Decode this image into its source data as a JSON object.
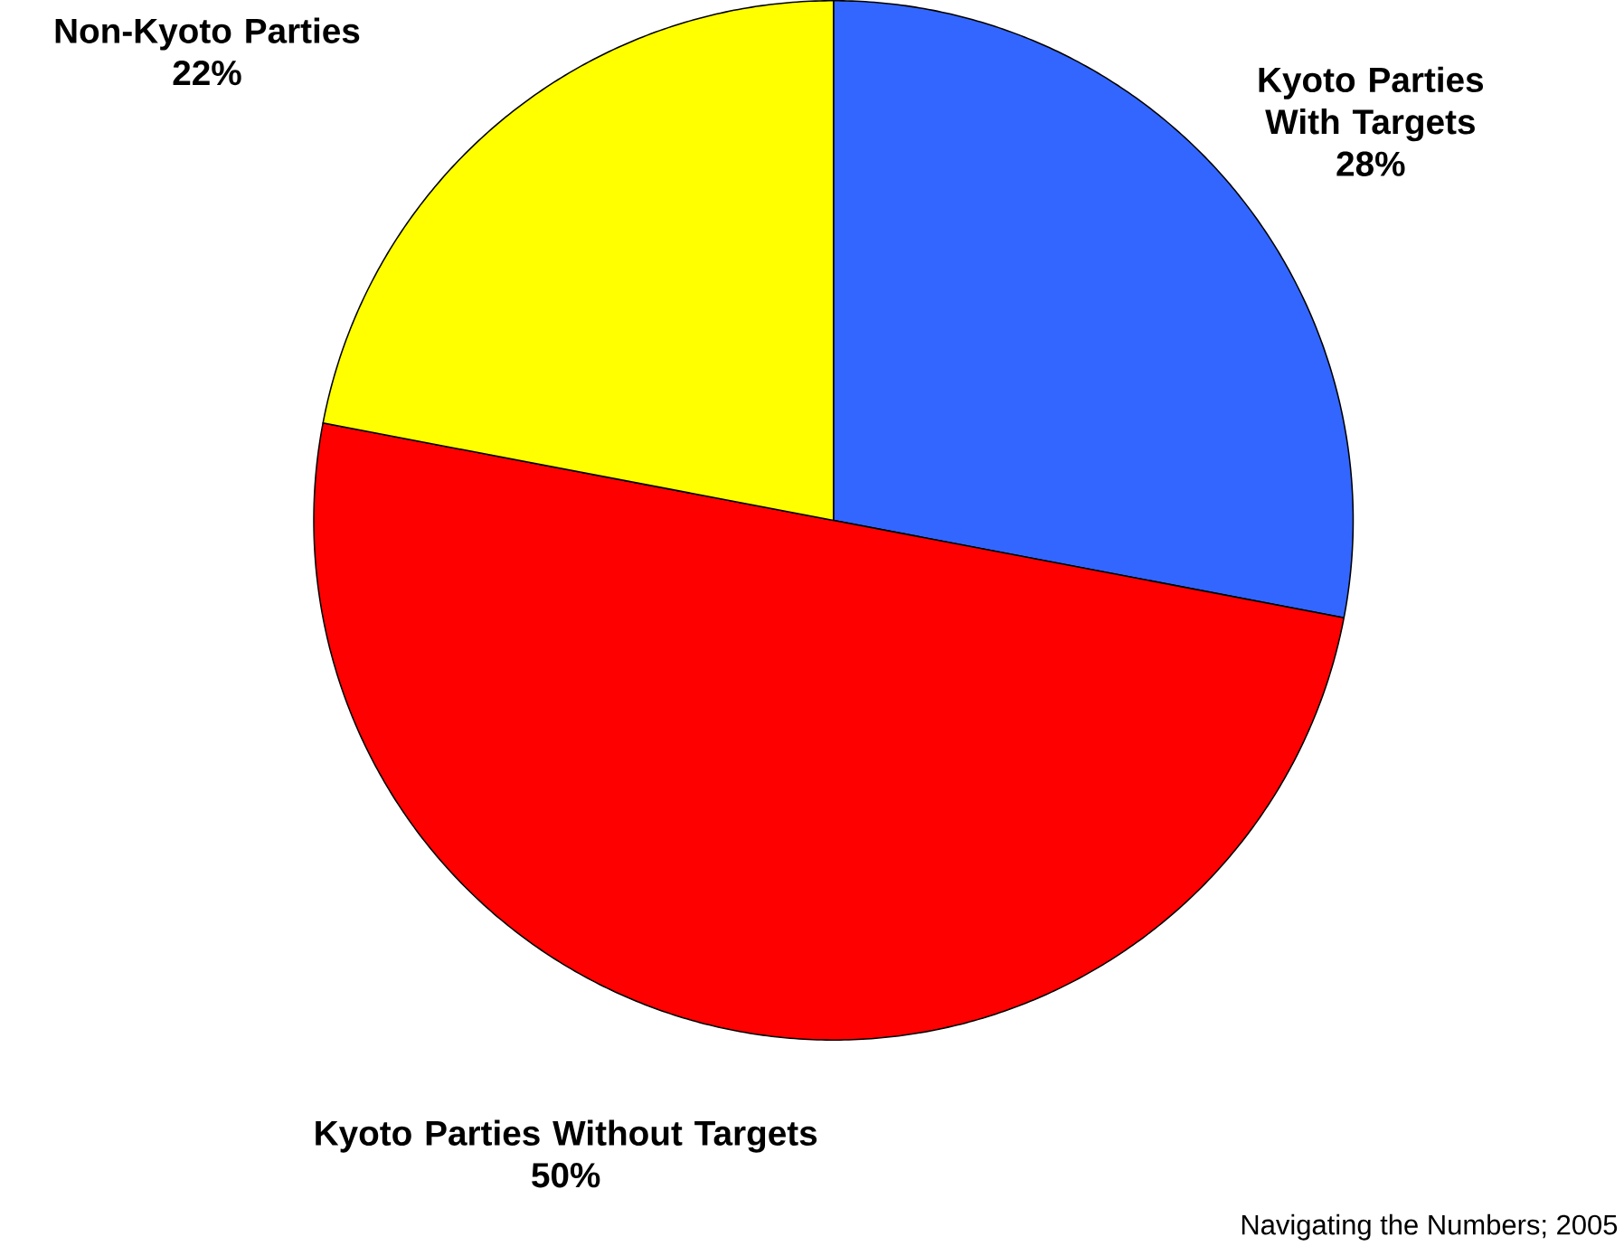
{
  "chart_data": {
    "type": "pie",
    "categories": [
      "Kyoto Parties With Targets",
      "Kyoto Parties Without Targets",
      "Non-Kyoto Parties"
    ],
    "values": [
      28,
      50,
      22
    ],
    "value_labels": [
      "28%",
      "50%",
      "22%"
    ],
    "colors": [
      "#3366ff",
      "#ff0000",
      "#ffff00"
    ],
    "annotations": [
      "Navigating the Numbers; 2005"
    ]
  }
}
